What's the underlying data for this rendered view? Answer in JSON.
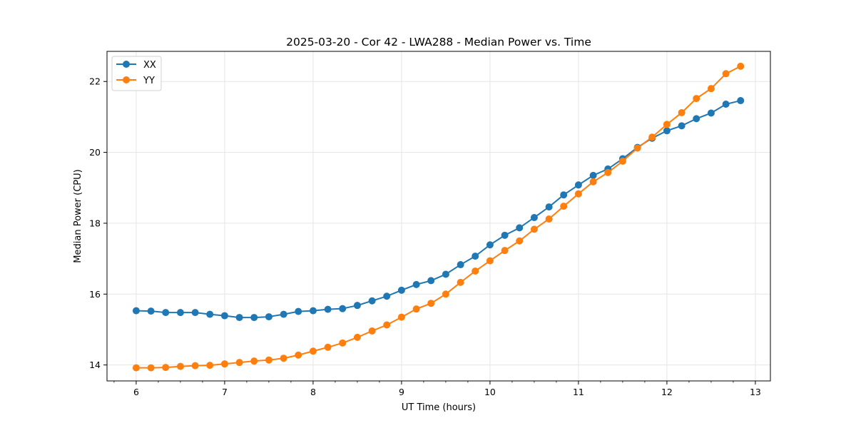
{
  "chart_data": {
    "type": "line",
    "title": "2025-03-20 - Cor 42 - LWA288 - Median Power vs. Time",
    "xlabel": "UT Time (hours)",
    "ylabel": "Median Power (CPU)",
    "xlim": [
      5.67,
      13.17
    ],
    "ylim": [
      13.55,
      22.85
    ],
    "xticks": [
      6,
      7,
      8,
      9,
      10,
      11,
      12,
      13
    ],
    "yticks": [
      14,
      16,
      18,
      20,
      22
    ],
    "grid": true,
    "legend_position": "top-left",
    "x": [
      6.0,
      6.167,
      6.333,
      6.5,
      6.667,
      6.833,
      7.0,
      7.167,
      7.333,
      7.5,
      7.667,
      7.833,
      8.0,
      8.167,
      8.333,
      8.5,
      8.667,
      8.833,
      9.0,
      9.167,
      9.333,
      9.5,
      9.667,
      9.833,
      10.0,
      10.167,
      10.333,
      10.5,
      10.667,
      10.833,
      11.0,
      11.167,
      11.333,
      11.5,
      11.667,
      11.833,
      12.0,
      12.167,
      12.333,
      12.5,
      12.667,
      12.833
    ],
    "series": [
      {
        "name": "XX",
        "color": "#1f77b4",
        "values": [
          15.53,
          15.52,
          15.48,
          15.48,
          15.48,
          15.43,
          15.39,
          15.34,
          15.34,
          15.36,
          15.43,
          15.51,
          15.53,
          15.57,
          15.59,
          15.68,
          15.81,
          15.94,
          16.11,
          16.27,
          16.38,
          16.56,
          16.83,
          17.07,
          17.39,
          17.66,
          17.87,
          18.16,
          18.46,
          18.8,
          19.08,
          19.35,
          19.53,
          19.82,
          20.14,
          20.4,
          20.61,
          20.75,
          20.95,
          21.11,
          21.36,
          21.46
        ]
      },
      {
        "name": "YY",
        "color": "#ff7f0e",
        "values": [
          13.92,
          13.92,
          13.93,
          13.96,
          13.98,
          13.99,
          14.03,
          14.07,
          14.11,
          14.14,
          14.19,
          14.28,
          14.39,
          14.5,
          14.62,
          14.78,
          14.96,
          15.13,
          15.35,
          15.58,
          15.74,
          16.0,
          16.33,
          16.65,
          16.94,
          17.23,
          17.5,
          17.83,
          18.12,
          18.48,
          18.83,
          19.17,
          19.43,
          19.75,
          20.12,
          20.43,
          20.79,
          21.12,
          21.52,
          21.8,
          22.22,
          22.43
        ]
      }
    ]
  }
}
